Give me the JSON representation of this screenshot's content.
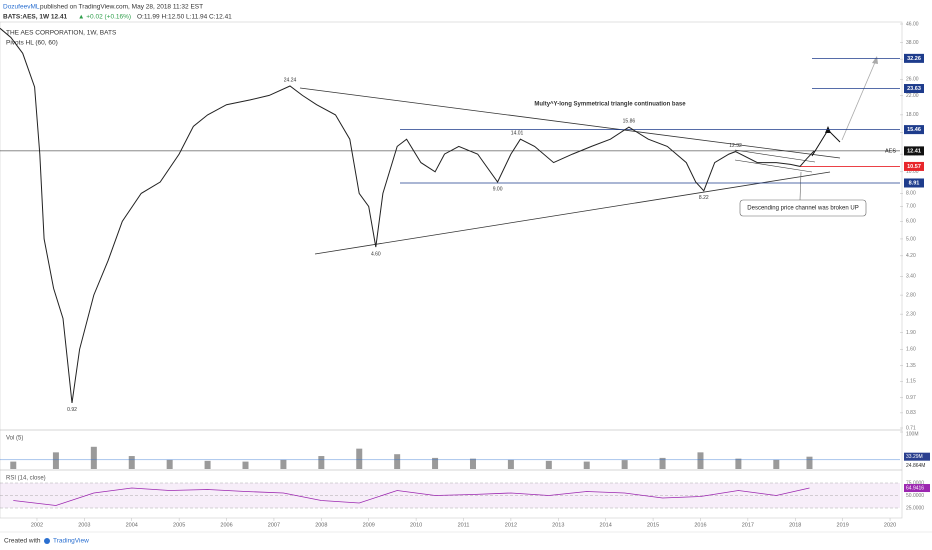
{
  "header": {
    "publisher_name": "DozufeevML",
    "publisher_text": "published on TradingView.com, May 28, 2018 11:32 EST",
    "symbol": "BATS:AES, 1W  12.41",
    "change": "▲ +0.02 (+0.16%)",
    "ohlc": "O:11.99 H:12.50 L:11.94 C:12.41",
    "name": "THE AES CORPORATION, 1W, BATS",
    "indicator": "Pivots HL (60, 60)"
  },
  "price_pane": {
    "scale": "log",
    "ylim": [
      0.71,
      46
    ],
    "yticks": [
      {
        "value": 46,
        "label": "46.00"
      },
      {
        "value": 38,
        "label": "38.00"
      },
      {
        "value": 32,
        "label": "32.00"
      },
      {
        "value": 26,
        "label": "26.00"
      },
      {
        "value": 22,
        "label": "22.00"
      },
      {
        "value": 18,
        "label": "18.00"
      },
      {
        "value": 15,
        "label": "15.00"
      },
      {
        "value": 12,
        "label": "12.00"
      },
      {
        "value": 10,
        "label": "10.00"
      },
      {
        "value": 8,
        "label": "8.00"
      },
      {
        "value": 7,
        "label": "7.00"
      },
      {
        "value": 6,
        "label": "6.00"
      },
      {
        "value": 5,
        "label": "5.00"
      },
      {
        "value": 4.2,
        "label": "4.20"
      },
      {
        "value": 3.4,
        "label": "3.40"
      },
      {
        "value": 2.8,
        "label": "2.80"
      },
      {
        "value": 2.3,
        "label": "2.30"
      },
      {
        "value": 1.9,
        "label": "1.90"
      },
      {
        "value": 1.6,
        "label": "1.60"
      },
      {
        "value": 1.35,
        "label": "1.35"
      },
      {
        "value": 1.15,
        "label": "1.15"
      },
      0.97,
      0.83,
      0.71
    ],
    "xlim": [
      2001.22,
      2020.21
    ],
    "price": {
      "color": "#222222",
      "x": [
        2001.22,
        2001.45,
        2001.7,
        2001.95,
        2002.06,
        2002.15,
        2002.35,
        2002.55,
        2002.74,
        2002.9,
        2003.2,
        2003.5,
        2003.8,
        2004.2,
        2004.6,
        2005.0,
        2005.3,
        2005.6,
        2006.0,
        2006.5,
        2006.9,
        2007.34,
        2007.6,
        2007.9,
        2008.3,
        2008.6,
        2008.8,
        2009.0,
        2009.15,
        2009.3,
        2009.6,
        2009.8,
        2010.1,
        2010.4,
        2010.6,
        2010.9,
        2011.3,
        2011.72,
        2012.0,
        2012.2,
        2012.5,
        2012.9,
        2013.3,
        2013.7,
        2014.1,
        2014.49,
        2014.9,
        2015.3,
        2015.7,
        2015.9,
        2016.07,
        2016.3,
        2016.6,
        2016.74,
        2017.2,
        2017.6,
        2017.9,
        2018.1,
        2018.25,
        2018.4
      ],
      "values": [
        44,
        40,
        34,
        24,
        12,
        5,
        3,
        2.2,
        0.92,
        1.6,
        2.8,
        4,
        6,
        8,
        9,
        12,
        16,
        18,
        20,
        21,
        22,
        24.24,
        22,
        20,
        18,
        14,
        8,
        7,
        4.6,
        8,
        13,
        14,
        11,
        10,
        12,
        13,
        12,
        9,
        12,
        14,
        13,
        11,
        12,
        13,
        14,
        15.86,
        14,
        13,
        11,
        9,
        8.22,
        11,
        12,
        12.32,
        11,
        11,
        10.8,
        10.57,
        11.5,
        12.41
      ]
    },
    "pivots": [
      {
        "x": 2007.34,
        "value": 24.24
      },
      {
        "x": 2009.15,
        "value": 4.6,
        "label": "4.60"
      },
      {
        "x": 2002.74,
        "value": 0.92
      },
      {
        "x": 2012.13,
        "value": 14.01
      },
      {
        "x": 2014.49,
        "value": 15.86
      },
      {
        "x": 2011.72,
        "value": 9,
        "label": "9.00"
      },
      {
        "x": 2016.07,
        "value": 8.22
      },
      {
        "x": 2016.74,
        "value": 12.32
      }
    ],
    "levels": [
      {
        "value": 32.26,
        "color": "#1e3c8c"
      },
      {
        "value": 23.63,
        "color": "#1e3c8c"
      },
      {
        "value": 15.46,
        "color": "#1e3c8c"
      },
      {
        "tag": "AES",
        "value": 12.41,
        "color": "#111111"
      },
      {
        "value": 10.57,
        "color": "#e8262b"
      },
      {
        "value": 8.91,
        "color": "#1e3c8c"
      }
    ],
    "notes": [
      "Multy^Y-long Symmetrical triangle continuation base",
      "Descending price channel was broken UP"
    ]
  },
  "volume_pane": {
    "title": "Vol (5)",
    "ylim": [
      0,
      100
    ],
    "yticks": [
      {
        "value": 100,
        "label": "100M"
      }
    ],
    "x": [
      2001.5,
      2002.4,
      2003.2,
      2004,
      2004.8,
      2005.6,
      2006.4,
      2007.2,
      2008,
      2008.8,
      2009.6,
      2010.4,
      2011.2,
      2012,
      2012.8,
      2013.6,
      2014.4,
      2015.2,
      2016,
      2016.8,
      2017.6,
      2018.3
    ],
    "values": [
      20,
      45,
      60,
      35,
      25,
      22,
      20,
      25,
      35,
      55,
      40,
      30,
      28,
      25,
      22,
      20,
      24,
      30,
      45,
      28,
      25,
      33.29
    ],
    "value_label": "33.29M",
    "ma": {
      "value": 24.864,
      "label": "24.864M"
    }
  },
  "rsi_pane": {
    "title": "RSI (14, close)",
    "ylim": [
      5,
      97
    ],
    "yticks": [
      {
        "value": 75,
        "label": "75.0000"
      },
      {
        "value": 50,
        "label": "50.0000"
      },
      {
        "value": 25,
        "label": "25.0000"
      }
    ],
    "color": "#9c27b0",
    "x": [
      2001.5,
      2002.4,
      2003.2,
      2004,
      2004.8,
      2005.6,
      2006.4,
      2007.2,
      2008,
      2008.8,
      2009.6,
      2010.4,
      2011.2,
      2012,
      2012.8,
      2013.6,
      2014.4,
      2015.2,
      2016,
      2016.8,
      2017.6,
      2018.3
    ],
    "values": [
      40,
      30,
      55,
      65,
      60,
      62,
      58,
      55,
      40,
      35,
      60,
      50,
      52,
      55,
      50,
      58,
      55,
      45,
      48,
      60,
      50,
      64.9416
    ],
    "value_label": "64.9416"
  },
  "time_axis": {
    "xticks": [
      2002,
      2003,
      2004,
      2005,
      2006,
      2007,
      2008,
      2009,
      2010,
      2011,
      2012,
      2013,
      2014,
      2015,
      2016,
      2017,
      2018,
      2019,
      2020
    ]
  },
  "footer": {
    "created": "Created with",
    "brand": "TradingView"
  }
}
